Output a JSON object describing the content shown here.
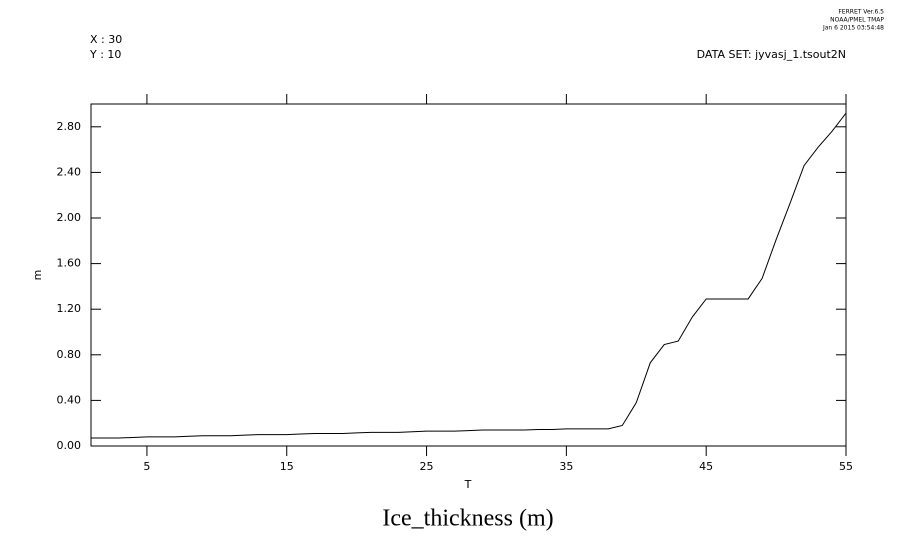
{
  "chart_data": {
    "type": "line",
    "title": "Ice_thickness (m)",
    "x_label": "T",
    "y_label": "m",
    "annotations": [
      "X : 30",
      "Y : 10",
      "DATA SET: jyvasj_1.tsout2N",
      "FERRET Ver.6.5",
      "NOAA/PMEL TMAP",
      "Jan  6 2015 03:54:48"
    ],
    "x": [
      1,
      2,
      3,
      4,
      5,
      6,
      7,
      8,
      9,
      10,
      11,
      12,
      13,
      14,
      15,
      16,
      17,
      18,
      19,
      20,
      21,
      22,
      23,
      24,
      25,
      26,
      27,
      28,
      29,
      30,
      31,
      32,
      33,
      34,
      35,
      36,
      37,
      38,
      39,
      40,
      41,
      42,
      43,
      44,
      45,
      46,
      47,
      48,
      49,
      50,
      51,
      52,
      53,
      54,
      55
    ],
    "series": [
      {
        "name": "Ice_thickness",
        "color": "#000000",
        "values": [
          0.07,
          0.07,
          0.07,
          0.075,
          0.08,
          0.08,
          0.08,
          0.085,
          0.09,
          0.09,
          0.09,
          0.095,
          0.1,
          0.1,
          0.1,
          0.105,
          0.11,
          0.11,
          0.11,
          0.115,
          0.12,
          0.12,
          0.12,
          0.125,
          0.13,
          0.13,
          0.13,
          0.135,
          0.14,
          0.14,
          0.14,
          0.14,
          0.145,
          0.145,
          0.15,
          0.15,
          0.15,
          0.15,
          0.18,
          0.38,
          0.73,
          0.89,
          0.92,
          1.13,
          1.29,
          1.29,
          1.29,
          1.29,
          1.47,
          1.81,
          2.13,
          2.46,
          2.62,
          2.76,
          2.92
        ]
      }
    ],
    "xlim": [
      1,
      55
    ],
    "xticks": [
      5,
      15,
      25,
      35,
      45,
      55
    ],
    "ylim": [
      0,
      3.0
    ],
    "yticks": [
      {
        "value": 0,
        "label": "0.00"
      },
      {
        "value": 0.4,
        "label": "0.40"
      },
      {
        "value": 0.8,
        "label": "0.80"
      },
      {
        "value": 1.2,
        "label": "1.20"
      },
      {
        "value": 1.6,
        "label": "1.60"
      },
      {
        "value": 2.0,
        "label": "2.00"
      },
      {
        "value": 2.4,
        "label": "2.40"
      },
      {
        "value": 2.8,
        "label": "2.80"
      }
    ]
  }
}
